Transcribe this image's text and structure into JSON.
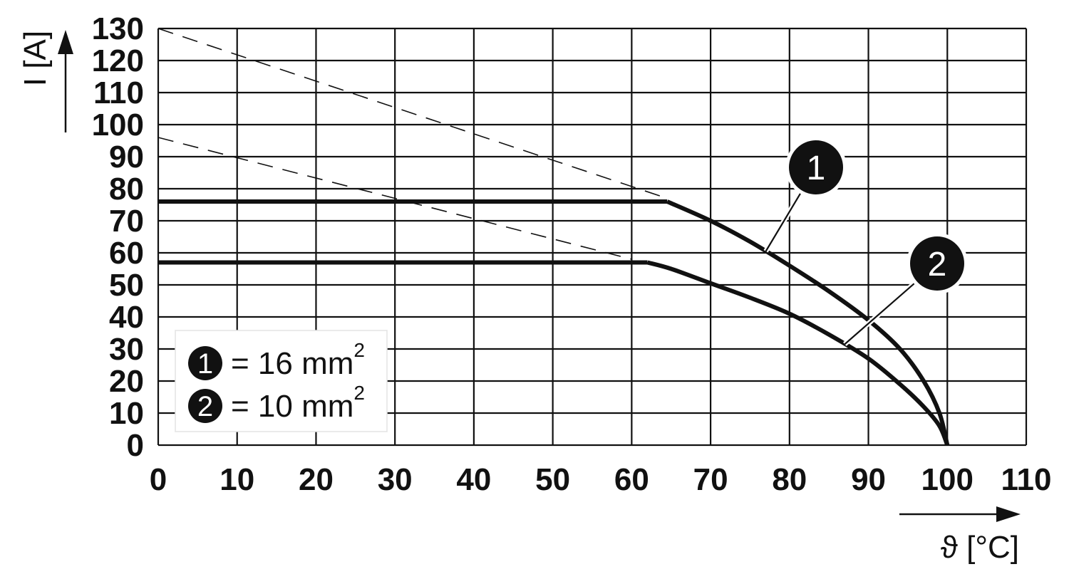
{
  "chart_data": {
    "type": "line",
    "xlabel": "ϑ [°C]",
    "ylabel": "I [A]",
    "xlim": [
      0,
      110
    ],
    "ylim": [
      0,
      130
    ],
    "x_ticks": [
      "0",
      "10",
      "20",
      "30",
      "40",
      "50",
      "60",
      "70",
      "80",
      "90",
      "100",
      "110"
    ],
    "y_ticks": [
      "0",
      "10",
      "20",
      "30",
      "40",
      "50",
      "60",
      "70",
      "80",
      "90",
      "100",
      "110",
      "120",
      "130"
    ],
    "grid": true,
    "legend_position": "bottom-left",
    "legend": [
      {
        "badge": "1",
        "text": "= 16 mm",
        "sup": "2"
      },
      {
        "badge": "2",
        "text": "= 10 mm",
        "sup": "2"
      }
    ],
    "series": [
      {
        "badge": "1",
        "x": [
          0,
          64.5,
          70,
          75,
          80,
          85,
          90,
          94,
          97,
          99,
          100
        ],
        "y": [
          76,
          76,
          70,
          63.5,
          56,
          48,
          39,
          30,
          20,
          10,
          0
        ]
      },
      {
        "badge": "2",
        "x": [
          0,
          62,
          65,
          70,
          75,
          80,
          85,
          90,
          94,
          97,
          99,
          100
        ],
        "y": [
          57,
          57,
          55,
          50.5,
          46,
          41,
          34.5,
          27,
          19,
          12,
          6,
          0
        ]
      }
    ],
    "reference_lines": [
      {
        "x": [
          0,
          64.5
        ],
        "y": [
          130,
          77
        ]
      },
      {
        "x": [
          0,
          60
        ],
        "y": [
          96,
          58
        ]
      }
    ],
    "callouts": [
      "1",
      "2"
    ]
  }
}
